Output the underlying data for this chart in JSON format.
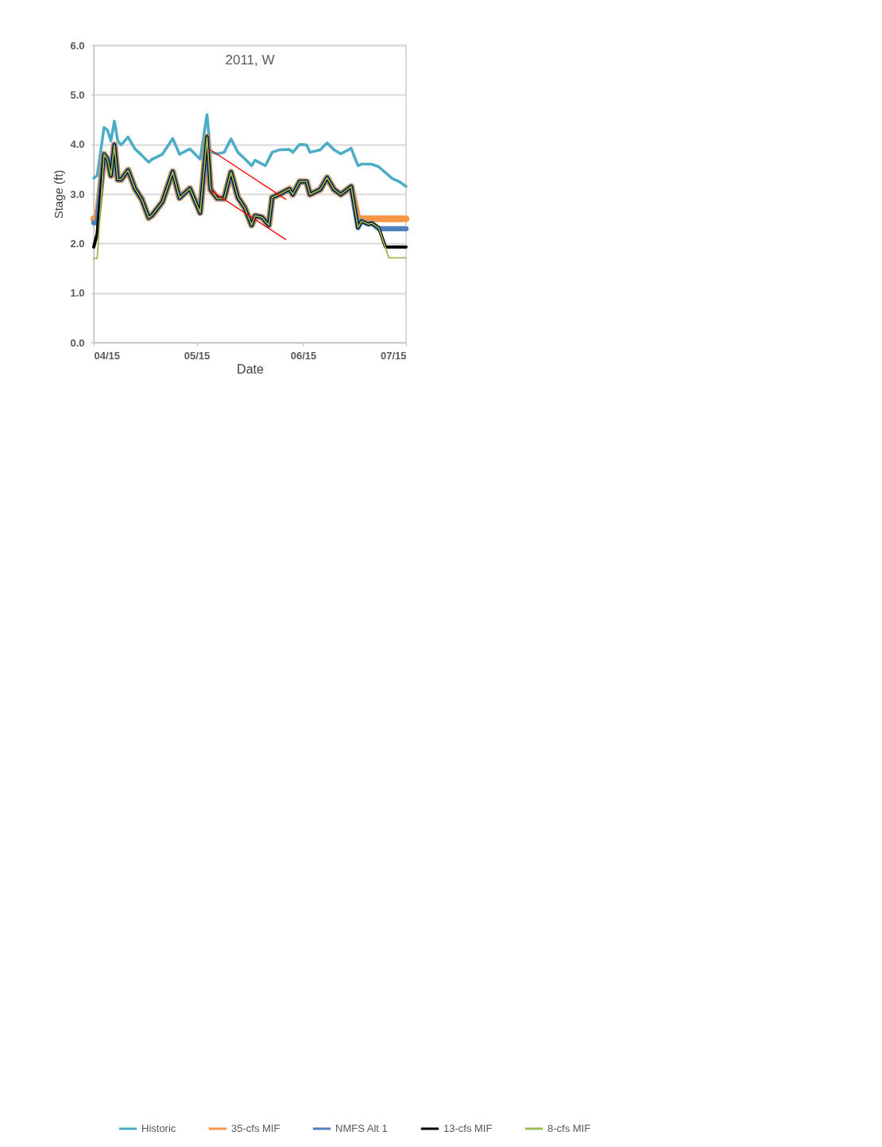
{
  "chart_data": {
    "type": "line",
    "title": "2011, W",
    "xlabel": "Date",
    "ylabel": "Stage (ft)",
    "xlim": [
      "2011-04-15",
      "2011-07-15"
    ],
    "xticks": [
      {
        "value": "2011-04-15",
        "label": "04/15"
      },
      {
        "value": "2011-05-15",
        "label": "05/15"
      },
      {
        "value": "2011-06-15",
        "label": "06/15"
      },
      {
        "value": "2011-07-15",
        "label": "07/15"
      }
    ],
    "ylim": [
      0,
      6
    ],
    "yticks": [
      {
        "value": 0,
        "label": "0.0"
      },
      {
        "value": 1,
        "label": "1.0"
      },
      {
        "value": 2,
        "label": "2.0"
      },
      {
        "value": 3,
        "label": "3.0"
      },
      {
        "value": 4,
        "label": "4.0"
      },
      {
        "value": 5,
        "label": "5.0"
      },
      {
        "value": 6,
        "label": "6.0"
      }
    ],
    "grid": "y",
    "legend": "bottom",
    "line_style": "solid",
    "marker": "none",
    "series": [
      {
        "name": "Historic",
        "color": "#4bacc6",
        "x": [
          "2011-04-15",
          "2011-04-16",
          "2011-04-18",
          "2011-04-19",
          "2011-04-20",
          "2011-04-21",
          "2011-04-22",
          "2011-04-23",
          "2011-04-25",
          "2011-04-27",
          "2011-04-29",
          "2011-05-01",
          "2011-05-02",
          "2011-05-05",
          "2011-05-08",
          "2011-05-10",
          "2011-05-13",
          "2011-05-16",
          "2011-05-18",
          "2011-05-19",
          "2011-05-21",
          "2011-05-23",
          "2011-05-25",
          "2011-05-27",
          "2011-05-29",
          "2011-05-31",
          "2011-06-01",
          "2011-06-04",
          "2011-06-06",
          "2011-06-08",
          "2011-06-11",
          "2011-06-12",
          "2011-06-14",
          "2011-06-16",
          "2011-06-17",
          "2011-06-20",
          "2011-06-22",
          "2011-06-24",
          "2011-06-26",
          "2011-06-29",
          "2011-07-01",
          "2011-07-02",
          "2011-07-05",
          "2011-07-07",
          "2011-07-11",
          "2011-07-13",
          "2011-07-15"
        ],
        "values": [
          3.32,
          3.37,
          4.34,
          4.29,
          4.07,
          4.47,
          4.07,
          3.99,
          4.15,
          3.91,
          3.78,
          3.64,
          3.7,
          3.8,
          4.12,
          3.8,
          3.91,
          3.7,
          4.6,
          3.85,
          3.81,
          3.84,
          4.11,
          3.84,
          3.71,
          3.57,
          3.68,
          3.57,
          3.84,
          3.89,
          3.9,
          3.84,
          4.0,
          3.99,
          3.84,
          3.89,
          4.03,
          3.89,
          3.81,
          3.92,
          3.57,
          3.6,
          3.6,
          3.55,
          3.31,
          3.25,
          3.15
        ]
      },
      {
        "name": "35-cfs MIF",
        "color": "#f79646",
        "x": [
          "2011-04-15",
          "2011-04-16",
          "2011-04-18",
          "2011-04-19",
          "2011-04-20",
          "2011-04-21",
          "2011-04-22",
          "2011-04-23",
          "2011-04-25",
          "2011-04-27",
          "2011-04-29",
          "2011-05-01",
          "2011-05-02",
          "2011-05-05",
          "2011-05-08",
          "2011-05-10",
          "2011-05-13",
          "2011-05-16",
          "2011-05-18",
          "2011-05-19",
          "2011-05-21",
          "2011-05-23",
          "2011-05-25",
          "2011-05-27",
          "2011-05-29",
          "2011-05-31",
          "2011-06-01",
          "2011-06-03",
          "2011-06-05",
          "2011-06-06",
          "2011-06-08",
          "2011-06-11",
          "2011-06-12",
          "2011-06-14",
          "2011-06-16",
          "2011-06-17",
          "2011-06-20",
          "2011-06-22",
          "2011-06-24",
          "2011-06-26",
          "2011-06-29",
          "2011-07-01",
          "2011-07-15"
        ],
        "values": [
          2.5,
          2.5,
          3.8,
          3.7,
          3.37,
          3.99,
          3.29,
          3.29,
          3.48,
          3.11,
          2.89,
          2.52,
          2.57,
          2.84,
          3.45,
          2.92,
          3.11,
          2.62,
          4.15,
          3.09,
          2.91,
          2.91,
          3.44,
          2.93,
          2.72,
          2.37,
          2.56,
          2.53,
          2.37,
          2.93,
          2.99,
          3.1,
          2.99,
          3.25,
          3.25,
          2.99,
          3.09,
          3.33,
          3.09,
          2.99,
          3.15,
          2.5,
          2.5
        ]
      },
      {
        "name": "NMFS Alt 1",
        "color": "#4f81bd",
        "x": [
          "2011-04-15",
          "2011-04-16",
          "2011-04-18",
          "2011-04-19",
          "2011-04-20",
          "2011-04-21",
          "2011-04-22",
          "2011-04-23",
          "2011-04-25",
          "2011-04-27",
          "2011-04-29",
          "2011-05-01",
          "2011-05-02",
          "2011-05-05",
          "2011-05-08",
          "2011-05-10",
          "2011-05-13",
          "2011-05-16",
          "2011-05-18",
          "2011-05-19",
          "2011-05-21",
          "2011-05-23",
          "2011-05-25",
          "2011-05-27",
          "2011-05-29",
          "2011-05-31",
          "2011-06-01",
          "2011-06-03",
          "2011-06-05",
          "2011-06-06",
          "2011-06-08",
          "2011-06-11",
          "2011-06-12",
          "2011-06-14",
          "2011-06-16",
          "2011-06-17",
          "2011-06-20",
          "2011-06-22",
          "2011-06-24",
          "2011-06-26",
          "2011-06-29",
          "2011-07-01",
          "2011-07-02",
          "2011-07-04",
          "2011-07-05",
          "2011-07-07",
          "2011-07-15"
        ],
        "values": [
          2.42,
          2.42,
          3.8,
          3.7,
          3.37,
          3.99,
          3.29,
          3.29,
          3.48,
          3.11,
          2.89,
          2.52,
          2.57,
          2.84,
          3.45,
          2.92,
          3.11,
          2.62,
          4.15,
          3.09,
          2.91,
          2.91,
          3.44,
          2.93,
          2.72,
          2.37,
          2.56,
          2.53,
          2.37,
          2.93,
          2.99,
          3.1,
          2.99,
          3.25,
          3.25,
          2.99,
          3.09,
          3.33,
          3.09,
          2.99,
          3.15,
          2.32,
          2.45,
          2.39,
          2.41,
          2.3,
          2.3
        ]
      },
      {
        "name": "13-cfs MIF",
        "color": "#000000",
        "x": [
          "2011-04-15",
          "2011-04-16",
          "2011-04-18",
          "2011-04-19",
          "2011-04-20",
          "2011-04-21",
          "2011-04-22",
          "2011-04-23",
          "2011-04-25",
          "2011-04-27",
          "2011-04-29",
          "2011-05-01",
          "2011-05-02",
          "2011-05-05",
          "2011-05-08",
          "2011-05-10",
          "2011-05-13",
          "2011-05-16",
          "2011-05-18",
          "2011-05-19",
          "2011-05-21",
          "2011-05-23",
          "2011-05-25",
          "2011-05-27",
          "2011-05-29",
          "2011-05-31",
          "2011-06-01",
          "2011-06-03",
          "2011-06-05",
          "2011-06-06",
          "2011-06-08",
          "2011-06-11",
          "2011-06-12",
          "2011-06-14",
          "2011-06-16",
          "2011-06-17",
          "2011-06-20",
          "2011-06-22",
          "2011-06-24",
          "2011-06-26",
          "2011-06-29",
          "2011-07-01",
          "2011-07-02",
          "2011-07-04",
          "2011-07-05",
          "2011-07-07",
          "2011-07-09",
          "2011-07-15"
        ],
        "values": [
          1.93,
          2.2,
          3.8,
          3.7,
          3.37,
          3.99,
          3.29,
          3.29,
          3.48,
          3.11,
          2.89,
          2.52,
          2.57,
          2.84,
          3.45,
          2.92,
          3.11,
          2.62,
          4.15,
          3.09,
          2.91,
          2.91,
          3.44,
          2.93,
          2.72,
          2.37,
          2.56,
          2.53,
          2.37,
          2.93,
          2.99,
          3.1,
          2.99,
          3.25,
          3.25,
          2.99,
          3.09,
          3.33,
          3.09,
          2.99,
          3.15,
          2.32,
          2.45,
          2.39,
          2.41,
          2.32,
          1.93,
          1.93
        ]
      },
      {
        "name": "8-cfs MIF",
        "color": "#9bbb59",
        "x": [
          "2011-04-15",
          "2011-04-16",
          "2011-04-18",
          "2011-04-19",
          "2011-04-20",
          "2011-04-21",
          "2011-04-22",
          "2011-04-23",
          "2011-04-25",
          "2011-04-27",
          "2011-04-29",
          "2011-05-01",
          "2011-05-02",
          "2011-05-05",
          "2011-05-08",
          "2011-05-10",
          "2011-05-13",
          "2011-05-16",
          "2011-05-18",
          "2011-05-19",
          "2011-05-21",
          "2011-05-23",
          "2011-05-25",
          "2011-05-27",
          "2011-05-29",
          "2011-05-31",
          "2011-06-01",
          "2011-06-03",
          "2011-06-05",
          "2011-06-06",
          "2011-06-08",
          "2011-06-11",
          "2011-06-12",
          "2011-06-14",
          "2011-06-16",
          "2011-06-17",
          "2011-06-20",
          "2011-06-22",
          "2011-06-24",
          "2011-06-26",
          "2011-06-29",
          "2011-07-01",
          "2011-07-02",
          "2011-07-04",
          "2011-07-05",
          "2011-07-07",
          "2011-07-10",
          "2011-07-15"
        ],
        "values": [
          1.7,
          1.7,
          3.8,
          3.7,
          3.37,
          3.99,
          3.29,
          3.29,
          3.48,
          3.11,
          2.89,
          2.52,
          2.57,
          2.84,
          3.45,
          2.92,
          3.11,
          2.62,
          4.15,
          3.09,
          2.91,
          2.91,
          3.44,
          2.93,
          2.72,
          2.37,
          2.56,
          2.53,
          2.37,
          2.93,
          2.99,
          3.1,
          2.99,
          3.25,
          3.25,
          2.99,
          3.09,
          3.33,
          3.09,
          2.99,
          3.15,
          2.32,
          2.45,
          2.39,
          2.41,
          2.32,
          1.71,
          1.71
        ]
      },
      {
        "type": "line",
        "color": "#ff0000",
        "x": [
          "2011-05-19",
          "2011-06-10"
        ],
        "values": [
          3.89,
          2.89
        ]
      },
      {
        "type": "line",
        "color": "#ff0000",
        "x": [
          "2011-05-19",
          "2011-06-10"
        ],
        "values": [
          3.07,
          2.08
        ]
      }
    ]
  }
}
